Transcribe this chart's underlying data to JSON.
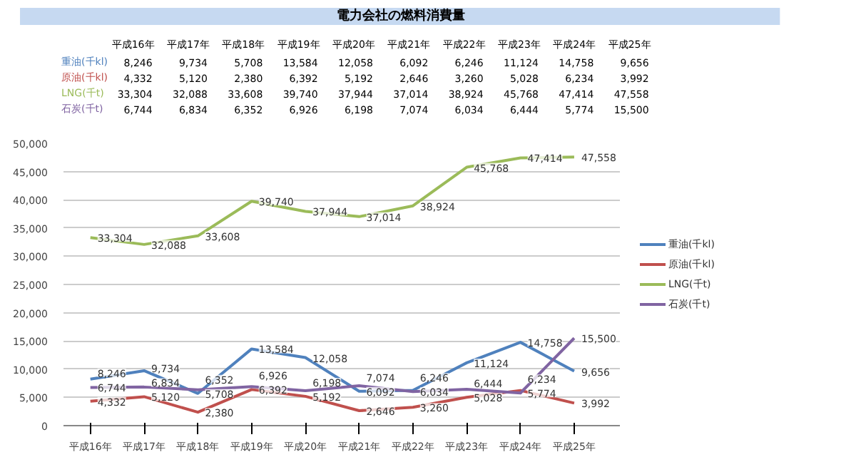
{
  "chart_data": {
    "type": "line",
    "title": "電力会社の燃料消費量",
    "categories": [
      "平成16年",
      "平成17年",
      "平成18年",
      "平成19年",
      "平成20年",
      "平成21年",
      "平成22年",
      "平成23年",
      "平成24年",
      "平成25年"
    ],
    "series": [
      {
        "name": "重油(千kl)",
        "color": "#4f81bd",
        "values": [
          8246,
          9734,
          5708,
          13584,
          12058,
          6092,
          6246,
          11124,
          14758,
          9656
        ],
        "value_labels": [
          "8,246",
          "9,734",
          "5,708",
          "13,584",
          "12,058",
          "6,092",
          "6,246",
          "11,124",
          "14,758",
          "9,656"
        ]
      },
      {
        "name": "原油(千kl)",
        "color": "#c0504d",
        "values": [
          4332,
          5120,
          2380,
          6392,
          5192,
          2646,
          3260,
          5028,
          6234,
          3992
        ],
        "value_labels": [
          "4,332",
          "5,120",
          "2,380",
          "6,392",
          "5,192",
          "2,646",
          "3,260",
          "5,028",
          "6,234",
          "3,992"
        ]
      },
      {
        "name": "LNG(千t)",
        "color": "#9bbb59",
        "values": [
          33304,
          32088,
          33608,
          39740,
          37944,
          37014,
          38924,
          45768,
          47414,
          47558
        ],
        "value_labels": [
          "33,304",
          "32,088",
          "33,608",
          "39,740",
          "37,944",
          "37,014",
          "38,924",
          "45,768",
          "47,414",
          "47,558"
        ]
      },
      {
        "name": "石炭(千t)",
        "color": "#8064a2",
        "values": [
          6744,
          6834,
          6352,
          6926,
          6198,
          7074,
          6034,
          6444,
          5774,
          15500
        ],
        "value_labels": [
          "6,744",
          "6,834",
          "6,352",
          "6,926",
          "6,198",
          "7,074",
          "6,034",
          "6,444",
          "5,774",
          "15,500"
        ]
      }
    ],
    "ylim": [
      0,
      50000
    ],
    "yticks": [
      {
        "value": 0,
        "label": "0"
      },
      {
        "value": 5000,
        "label": "5,000"
      },
      {
        "value": 10000,
        "label": "10,000"
      },
      {
        "value": 15000,
        "label": "15,000"
      },
      {
        "value": 20000,
        "label": "20,000"
      },
      {
        "value": 25000,
        "label": "25,000"
      },
      {
        "value": 30000,
        "label": "30,000"
      },
      {
        "value": 35000,
        "label": "35,000"
      },
      {
        "value": 40000,
        "label": "40,000"
      },
      {
        "value": 45000,
        "label": "45,000"
      },
      {
        "value": 50000,
        "label": "50,000"
      }
    ],
    "grid": "y",
    "legend": "right",
    "marker": "none",
    "line_style": "solid",
    "data_labels": true
  }
}
